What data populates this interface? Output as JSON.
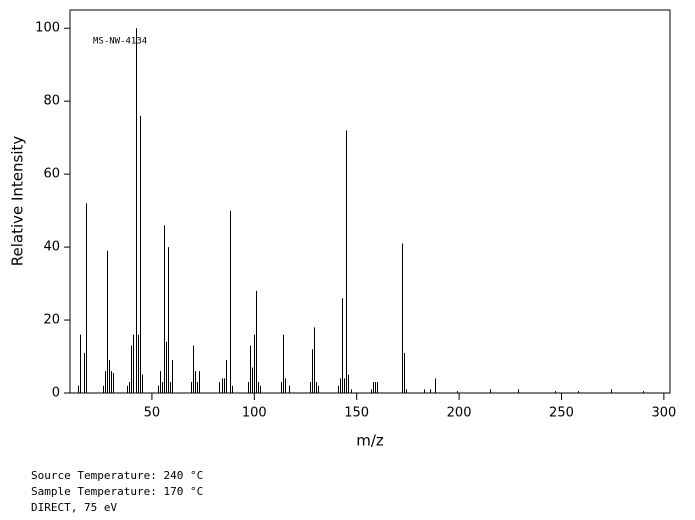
{
  "chart_data": {
    "type": "bar",
    "annotation": "MS-NW-4134",
    "xlabel": "m/z",
    "ylabel": "Relative Intensity",
    "notes": [
      "Source Temperature: 240 °C",
      "Sample Temperature: 170 °C",
      "DIRECT, 75 eV"
    ],
    "color": "#000000",
    "x": [
      14,
      15,
      17,
      18,
      26,
      27,
      28,
      29,
      30,
      31,
      38,
      39,
      40,
      41,
      42,
      43,
      44,
      45,
      53,
      54,
      55,
      56,
      57,
      58,
      59,
      60,
      69,
      70,
      71,
      72,
      73,
      83,
      84,
      85,
      86,
      88,
      89,
      97,
      98,
      99,
      100,
      101,
      102,
      103,
      113,
      114,
      115,
      117,
      127,
      128,
      129,
      130,
      131,
      141,
      142,
      143,
      144,
      145,
      146,
      147,
      157,
      158,
      159,
      160,
      172,
      173,
      174,
      183,
      186,
      188,
      199,
      215,
      229,
      247,
      258,
      274,
      290
    ],
    "values": [
      2,
      16,
      11,
      52,
      2,
      6,
      39,
      9,
      6,
      5.5,
      2,
      3,
      13,
      16,
      100,
      16,
      76,
      5,
      2,
      6,
      3,
      46,
      14,
      40,
      3,
      9,
      3,
      13,
      6,
      3,
      6,
      3,
      4,
      4,
      9,
      50,
      2,
      3,
      13,
      7,
      16,
      28,
      3,
      2,
      3,
      16,
      4,
      2,
      3,
      12,
      18,
      3,
      2,
      2,
      4,
      26,
      4,
      72,
      5,
      1,
      1,
      3,
      3,
      3,
      41,
      11,
      1,
      1,
      1,
      4,
      0.5,
      1,
      1,
      0.5,
      0.5,
      1,
      0.5
    ],
    "xlim": [
      10,
      303
    ],
    "xticks": [
      50,
      100,
      150,
      200,
      250,
      300
    ],
    "ylim": [
      0,
      105
    ],
    "yticks": [
      0,
      20,
      40,
      60,
      80,
      100
    ]
  }
}
